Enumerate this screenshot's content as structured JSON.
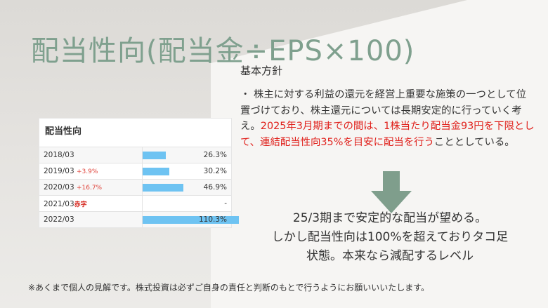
{
  "title": "配当性向(配当金÷EPS×100)",
  "policy": {
    "heading": "基本方針",
    "body_plain": "・ 株主に対する利益の還元を経営上重要な施策の一つとして位置づけており、株主還元については長期安定的に行っていく考え。",
    "body_red": "2025年3月期までの間は、1株当たり配当金93円を下限として、連結配当性向35%を目安に配当を行う",
    "body_tail": "こととしている。"
  },
  "table": {
    "title": "配当性向",
    "rows": [
      {
        "year": "2018/03",
        "change": "",
        "value": "26.3%",
        "ratio": 26.3
      },
      {
        "year": "2019/03",
        "change": "+3.9%",
        "value": "30.2%",
        "ratio": 30.2
      },
      {
        "year": "2020/03",
        "change": "+16.7%",
        "value": "46.9%",
        "ratio": 46.9
      },
      {
        "year": "2021/03",
        "change": "赤字",
        "value": "-",
        "ratio": 0
      },
      {
        "year": "2022/03",
        "change": "",
        "value": "110.3%",
        "ratio": 110.3
      }
    ]
  },
  "conclusion": {
    "line1": "25/3期まで安定的な配当が望める。",
    "line2": "しかし配当性向は100%を超えておりタコ足",
    "line3": "状態。本来なら減配するレベル"
  },
  "disclaimer": "※あくまで個人の見解です。株式投資は必ずご自身の責任と判断のもとで行うようにお願いいいたします。",
  "colors": {
    "title": "#7fa08e",
    "red": "#e0201b",
    "bar": "#6ec3f2",
    "arrow": "#7f9e8c"
  }
}
